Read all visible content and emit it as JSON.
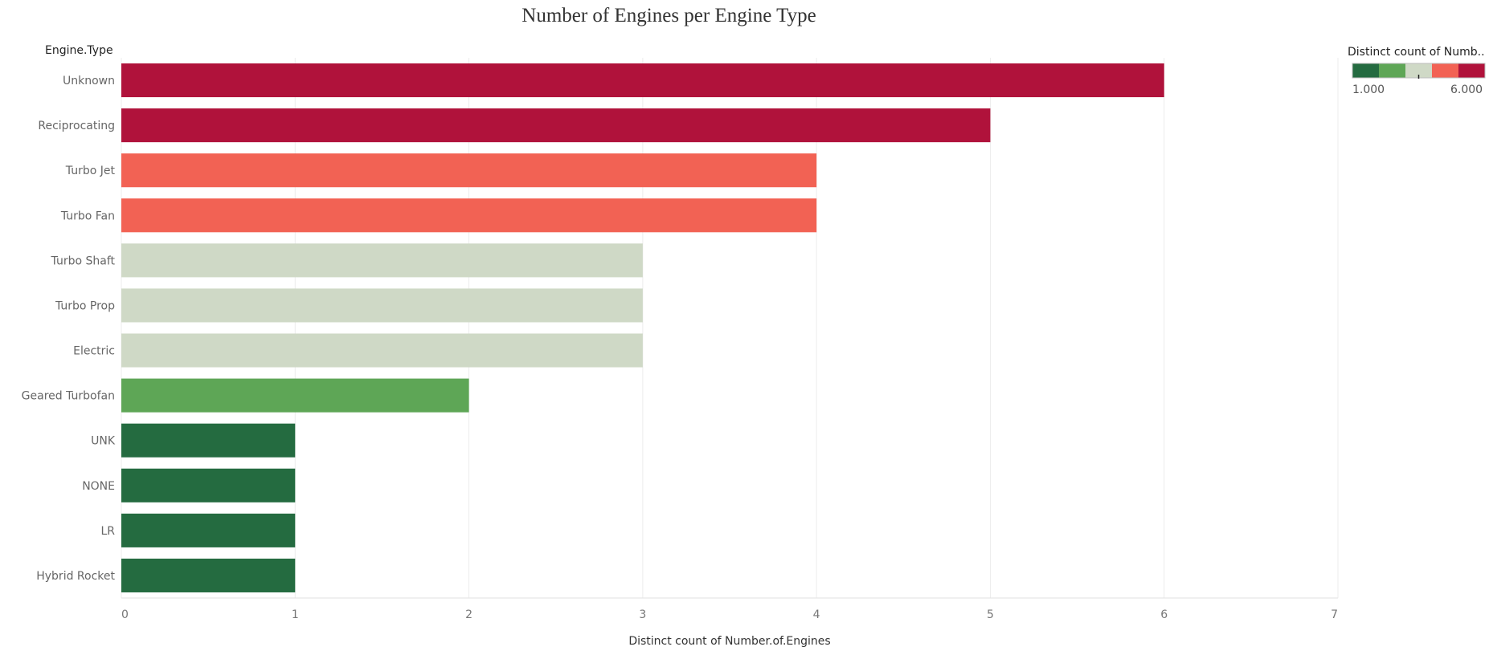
{
  "chart_data": {
    "type": "bar",
    "orientation": "horizontal",
    "title": "Number of Engines per Engine Type",
    "row_header": "Engine.Type",
    "xlabel": "Distinct count of Number.of.Engines",
    "ylabel": "",
    "xlim": [
      0,
      7
    ],
    "xticks": [
      "0",
      "1",
      "2",
      "3",
      "4",
      "5",
      "6",
      "7"
    ],
    "grid": true,
    "categories": [
      "Unknown",
      "Reciprocating",
      "Turbo Jet",
      "Turbo Fan",
      "Turbo Shaft",
      "Turbo Prop",
      "Electric",
      "Geared Turbofan",
      "UNK",
      "NONE",
      "LR",
      "Hybrid Rocket"
    ],
    "values": [
      6,
      5,
      4,
      4,
      3,
      3,
      3,
      2,
      1,
      1,
      1,
      1
    ],
    "legend": {
      "title": "Distinct count of Numb..",
      "min_label": "1.000",
      "max_label": "6.000",
      "placement": "top-right",
      "colors": [
        "#246b40",
        "#5ea656",
        "#cfd9c6",
        "#f26254",
        "#b0123b"
      ]
    }
  }
}
